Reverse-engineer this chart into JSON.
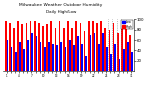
{
  "title": "Milwaukee Weather Outdoor Humidity",
  "subtitle": "Daily High/Low",
  "high_color": "#ff0000",
  "low_color": "#0000ff",
  "background_color": "#ffffff",
  "ylim": [
    0,
    100
  ],
  "yticks": [
    20,
    40,
    60,
    80,
    100
  ],
  "high_values": [
    97,
    93,
    83,
    97,
    90,
    93,
    97,
    97,
    93,
    87,
    90,
    97,
    83,
    97,
    83,
    97,
    83,
    97,
    93,
    77,
    97,
    97,
    93,
    97,
    83,
    80,
    93,
    73,
    87,
    93,
    70
  ],
  "low_values": [
    60,
    47,
    37,
    57,
    43,
    60,
    73,
    67,
    57,
    47,
    57,
    53,
    50,
    57,
    47,
    60,
    50,
    67,
    53,
    30,
    70,
    73,
    53,
    73,
    47,
    33,
    53,
    23,
    43,
    57,
    37
  ],
  "dashed_vlines": [
    24.5,
    25.5,
    26.5,
    27.5
  ],
  "legend_labels": [
    "High",
    "Low"
  ],
  "bar_width": 0.42
}
